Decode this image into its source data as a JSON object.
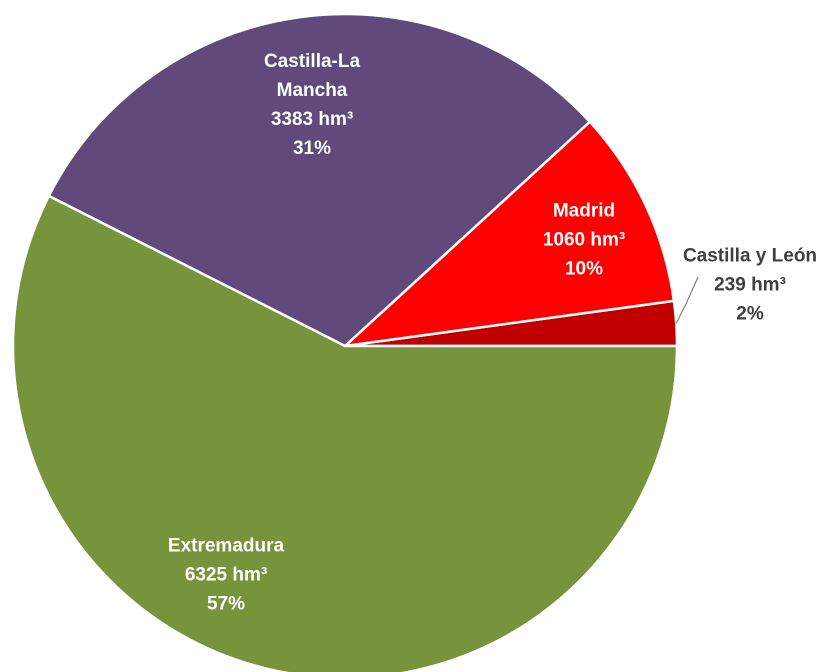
{
  "chart_data": {
    "type": "pie",
    "categories": [
      "Castilla y León",
      "Madrid",
      "Castilla-La Mancha",
      "Extremadura"
    ],
    "values": [
      239,
      1060,
      3383,
      6325
    ],
    "value_labels": [
      "239 hm³",
      "1060 hm³",
      "3383 hm³",
      "6325 hm³"
    ],
    "percentages": [
      2,
      10,
      31,
      57
    ],
    "percentage_labels": [
      "2%",
      "10%",
      "31%",
      "57%"
    ],
    "colors": [
      "#c00000",
      "#ff0000",
      "#604a7b",
      "#77933c"
    ]
  }
}
